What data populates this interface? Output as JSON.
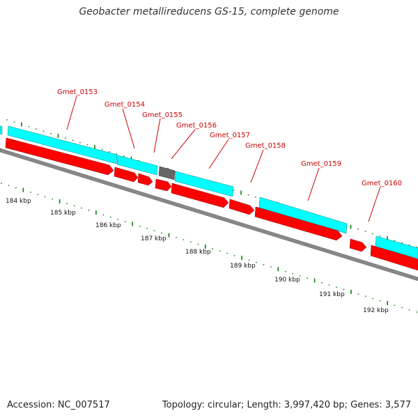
{
  "title": "Geobacter metallireducens GS-15, complete genome",
  "footer": {
    "accession": "Accession: NC_007517",
    "summary": "Topology: circular; Length: 3,997,420 bp; Genes: 3,577"
  },
  "colors": {
    "forward_gene": "#00ffff",
    "reverse_gene": "#ff0000",
    "other_feature": "#666666",
    "backbone": "#888888",
    "ticks": "#008000",
    "gene_label": "#cc0000"
  },
  "gene_labels": [
    "Gmet_0153",
    "Gmet_0154",
    "Gmet_0155",
    "Gmet_0156",
    "Gmet_0157",
    "Gmet_0158",
    "Gmet_0159",
    "Gmet_0160"
  ],
  "kbp_labels": [
    "184 kbp",
    "185 kbp",
    "186 kbp",
    "187 kbp",
    "188 kbp",
    "189 kbp",
    "190 kbp",
    "191 kbp",
    "192 kbp"
  ]
}
